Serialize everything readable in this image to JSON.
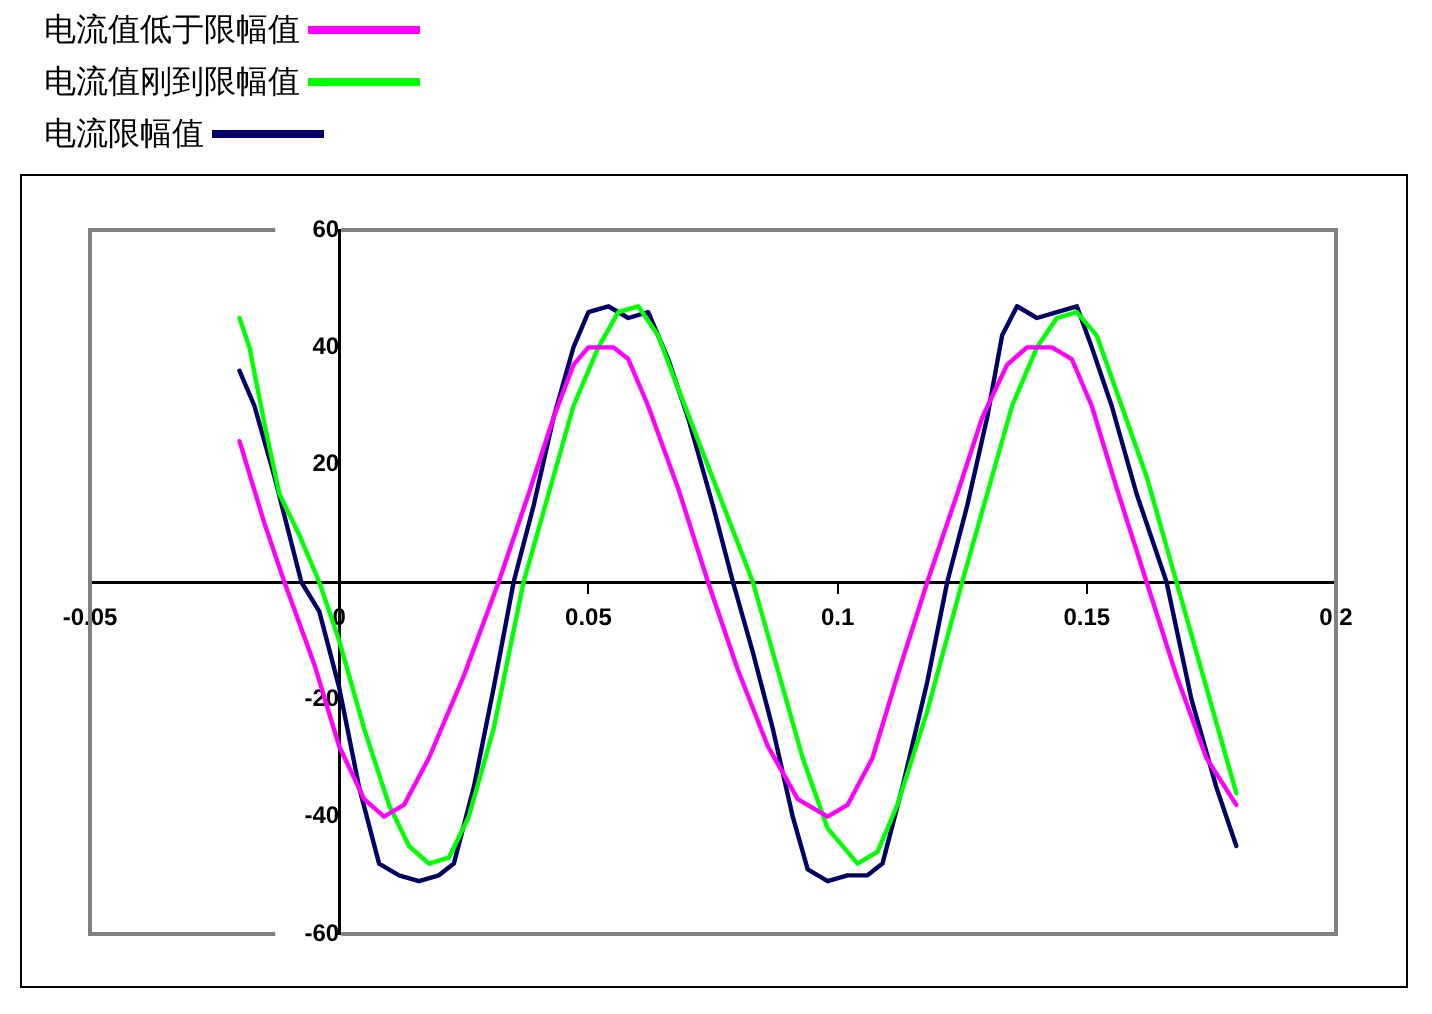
{
  "chart_data": {
    "type": "line",
    "legend": "top left",
    "grid": false,
    "marker": "none",
    "line_style": "solid",
    "xlim": [
      -0.05,
      0.2
    ],
    "xticks": [
      -0.05,
      0,
      0.05,
      0.1,
      0.15,
      0.2
    ],
    "ylim": [
      -60,
      60
    ],
    "yticks": [
      -60,
      -40,
      -20,
      20,
      40,
      60
    ],
    "series": [
      {
        "name": "电流值低于限幅值",
        "color": "#ff00ff",
        "x": [
          -0.02,
          -0.015,
          -0.011,
          -0.005,
          0,
          0.005,
          0.009,
          0.013,
          0.018,
          0.025,
          0.032,
          0.038,
          0.043,
          0.047,
          0.05,
          0.055,
          0.058,
          0.062,
          0.068,
          0.074,
          0.08,
          0.086,
          0.092,
          0.098,
          0.102,
          0.107,
          0.112,
          0.118,
          0.124,
          0.129,
          0.134,
          0.138,
          0.143,
          0.147,
          0.151,
          0.156,
          0.162,
          0.168,
          0.174,
          0.18
        ],
        "values": [
          24,
          10,
          0,
          -14,
          -28,
          -37,
          -40,
          -38,
          -30,
          -16,
          0,
          15,
          28,
          37,
          40,
          40,
          38,
          30,
          16,
          0,
          -15,
          -28,
          -37,
          -40,
          -38,
          -30,
          -16,
          0,
          15,
          28,
          37,
          40,
          40,
          38,
          30,
          16,
          0,
          -16,
          -30,
          -38
        ]
      },
      {
        "name": "电流值刚到限幅值",
        "color": "#00ff00",
        "x": [
          -0.02,
          -0.018,
          -0.015,
          -0.012,
          -0.008,
          -0.004,
          0,
          0.005,
          0.01,
          0.014,
          0.018,
          0.022,
          0.026,
          0.031,
          0.037,
          0.042,
          0.047,
          0.052,
          0.056,
          0.06,
          0.064,
          0.068,
          0.073,
          0.078,
          0.083,
          0.088,
          0.093,
          0.098,
          0.104,
          0.108,
          0.112,
          0.118,
          0.125,
          0.13,
          0.135,
          0.14,
          0.144,
          0.148,
          0.152,
          0.157,
          0.162,
          0.168,
          0.174,
          0.18
        ],
        "values": [
          45,
          40,
          27,
          15,
          8,
          0,
          -10,
          -25,
          -38,
          -45,
          -48,
          -47,
          -40,
          -25,
          0,
          15,
          30,
          40,
          46,
          47,
          42,
          33,
          22,
          11,
          0,
          -15,
          -30,
          -42,
          -48,
          -46,
          -38,
          -22,
          0,
          15,
          30,
          40,
          45,
          46,
          42,
          30,
          18,
          0,
          -18,
          -36
        ]
      },
      {
        "name": "电流限幅值",
        "color": "#000066",
        "x": [
          -0.02,
          -0.017,
          -0.013,
          -0.01,
          -0.0076,
          -0.004,
          0,
          0.004,
          0.008,
          0.012,
          0.016,
          0.02,
          0.023,
          0.027,
          0.031,
          0.035,
          0.039,
          0.043,
          0.047,
          0.05,
          0.054,
          0.058,
          0.062,
          0.066,
          0.07,
          0.075,
          0.079,
          0.083,
          0.087,
          0.091,
          0.094,
          0.098,
          0.102,
          0.106,
          0.109,
          0.113,
          0.118,
          0.122,
          0.126,
          0.13,
          0.133,
          0.136,
          0.14,
          0.144,
          0.148,
          0.151,
          0.155,
          0.16,
          0.166,
          0.171,
          0.176,
          0.18
        ],
        "values": [
          36,
          30,
          18,
          8,
          0,
          -5,
          -18,
          -35,
          -48,
          -50,
          -51,
          -50,
          -48,
          -35,
          -18,
          0,
          13,
          28,
          40,
          46,
          47,
          45,
          46,
          38,
          28,
          13,
          0,
          -12,
          -25,
          -40,
          -49,
          -51,
          -50,
          -50,
          -48,
          -35,
          -17,
          0,
          13,
          28,
          42,
          47,
          45,
          46,
          47,
          40,
          30,
          15,
          0,
          -20,
          -35,
          -45
        ]
      }
    ]
  }
}
